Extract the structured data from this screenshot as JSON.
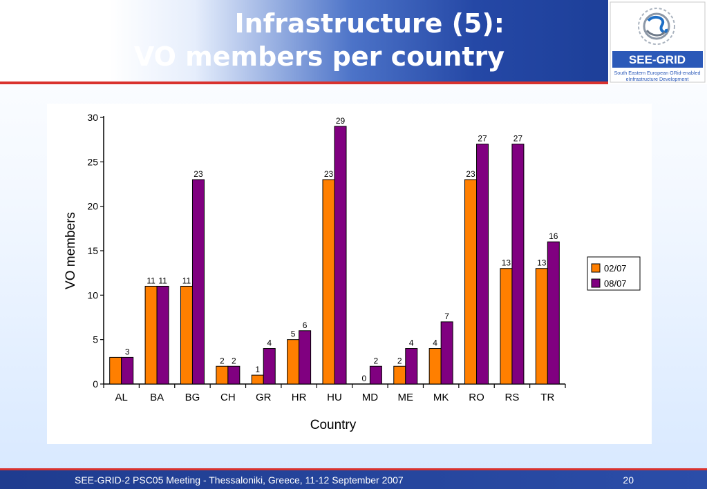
{
  "slide": {
    "title_line1": "Infrastructure (5):",
    "title_line2": "VO members per country",
    "footer_text": "SEE-GRID-2 PSC05 Meeting - Thessaloniki, Greece, 11-12 September 2007",
    "page_number": "20"
  },
  "logo": {
    "name": "SEE-GRID",
    "tagline_line1": "South Eastern European GRid-enabled",
    "tagline_line2": "eInfrastructure Development"
  },
  "colors": {
    "series_1": "#ff7f00",
    "series_2": "#800080",
    "header_blue": "#1d3f99",
    "accent_red": "#d9322e"
  },
  "chart_data": {
    "type": "bar",
    "title": "",
    "xlabel": "Country",
    "ylabel": "VO members",
    "ylim": [
      0,
      30
    ],
    "yticks": [
      0,
      5,
      10,
      15,
      20,
      25,
      30
    ],
    "categories": [
      "AL",
      "BA",
      "BG",
      "CH",
      "GR",
      "HR",
      "HU",
      "MD",
      "ME",
      "MK",
      "RO",
      "RS",
      "TR"
    ],
    "series": [
      {
        "name": "02/07",
        "color": "#ff7f00",
        "values": [
          3,
          11,
          11,
          2,
          1,
          5,
          23,
          0,
          2,
          4,
          23,
          13,
          13
        ]
      },
      {
        "name": "08/07",
        "color": "#800080",
        "values": [
          3,
          11,
          23,
          2,
          4,
          6,
          29,
          2,
          4,
          7,
          27,
          27,
          16
        ]
      }
    ],
    "data_labels": [
      [
        "",
        "11",
        "11",
        "2",
        "1",
        "5",
        "23",
        "0",
        "2",
        "4",
        "23",
        "13",
        "13"
      ],
      [
        "3",
        "11",
        "23",
        "2",
        "4",
        "6",
        "29",
        "2",
        "4",
        "7",
        "27",
        "27",
        "16"
      ]
    ],
    "legend_position": "right",
    "grid": false
  }
}
